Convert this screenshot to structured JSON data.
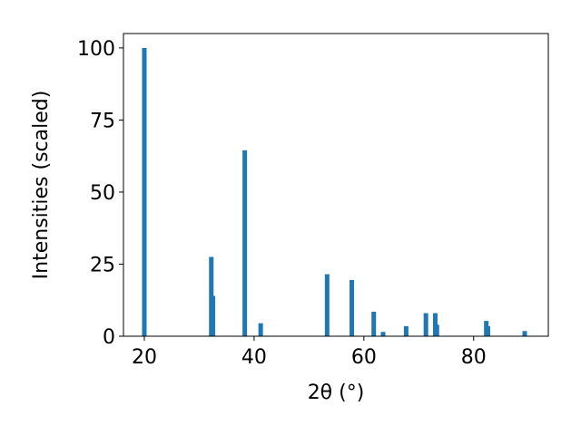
{
  "chart_data": {
    "type": "bar",
    "x_label": "2θ (°)",
    "y_label": "Intensities (scaled)",
    "x": [
      20,
      32.2,
      32.5,
      38.3,
      41.2,
      53.3,
      57.8,
      61.8,
      63.5,
      67.7,
      71.3,
      73.0,
      73.3,
      82.3,
      82.6,
      89.3
    ],
    "values": [
      100,
      27.5,
      14,
      64.5,
      4.5,
      21.5,
      19.5,
      8.5,
      1.5,
      3.5,
      8,
      8,
      4,
      5.3,
      3.5,
      1.8
    ],
    "color": "#1f77b4",
    "xlim": [
      16.2,
      93.6
    ],
    "ylim": [
      0,
      105
    ],
    "xticks": [
      20,
      40,
      60,
      80
    ],
    "yticks": [
      0,
      25,
      50,
      75,
      100
    ]
  }
}
